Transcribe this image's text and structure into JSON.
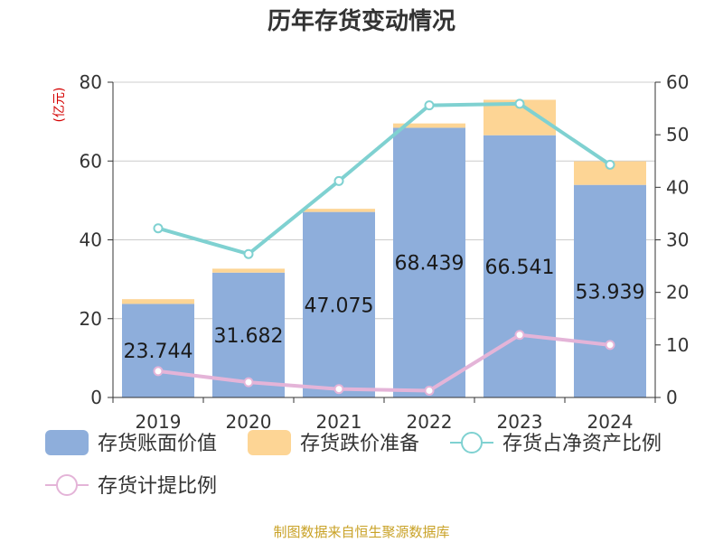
{
  "chart_data": {
    "type": "bar",
    "title": "历年存货变动情况",
    "left_unit": "(亿元)",
    "right_unit": "%",
    "categories": [
      "2019",
      "2020",
      "2021",
      "2022",
      "2023",
      "2024"
    ],
    "y_left": {
      "ylim": [
        0,
        80
      ],
      "ticks": [
        "0",
        "20",
        "40",
        "60",
        "80"
      ]
    },
    "y_right": {
      "ylim": [
        0,
        60
      ],
      "ticks": [
        "0",
        "10",
        "20",
        "30",
        "40",
        "50",
        "60"
      ]
    },
    "series": [
      {
        "name": "存货账面价值",
        "kind": "bar-stack",
        "axis": "left",
        "color": "#8eaedb",
        "values": [
          23.744,
          31.682,
          47.075,
          68.439,
          66.541,
          53.939
        ],
        "labels": [
          "23.744",
          "31.682",
          "47.075",
          "68.439",
          "66.541",
          "53.939"
        ]
      },
      {
        "name": "存货跌价准备",
        "kind": "bar-stack",
        "axis": "left",
        "color": "#fdd595",
        "values": [
          1.2,
          1.0,
          0.8,
          1.1,
          9.0,
          6.0
        ]
      },
      {
        "name": "存货占净资产比例",
        "kind": "line",
        "axis": "right",
        "color": "#7fd1d1",
        "values": [
          32.2,
          27.3,
          41.2,
          55.6,
          55.9,
          44.3
        ]
      },
      {
        "name": "存货计提比例",
        "kind": "line",
        "axis": "right",
        "color": "#e4b4d8",
        "values": [
          5.0,
          2.9,
          1.6,
          1.3,
          11.9,
          10.0
        ]
      }
    ],
    "grid": true,
    "legend_position": "bottom"
  },
  "source": "制图数据来自恒生聚源数据库"
}
